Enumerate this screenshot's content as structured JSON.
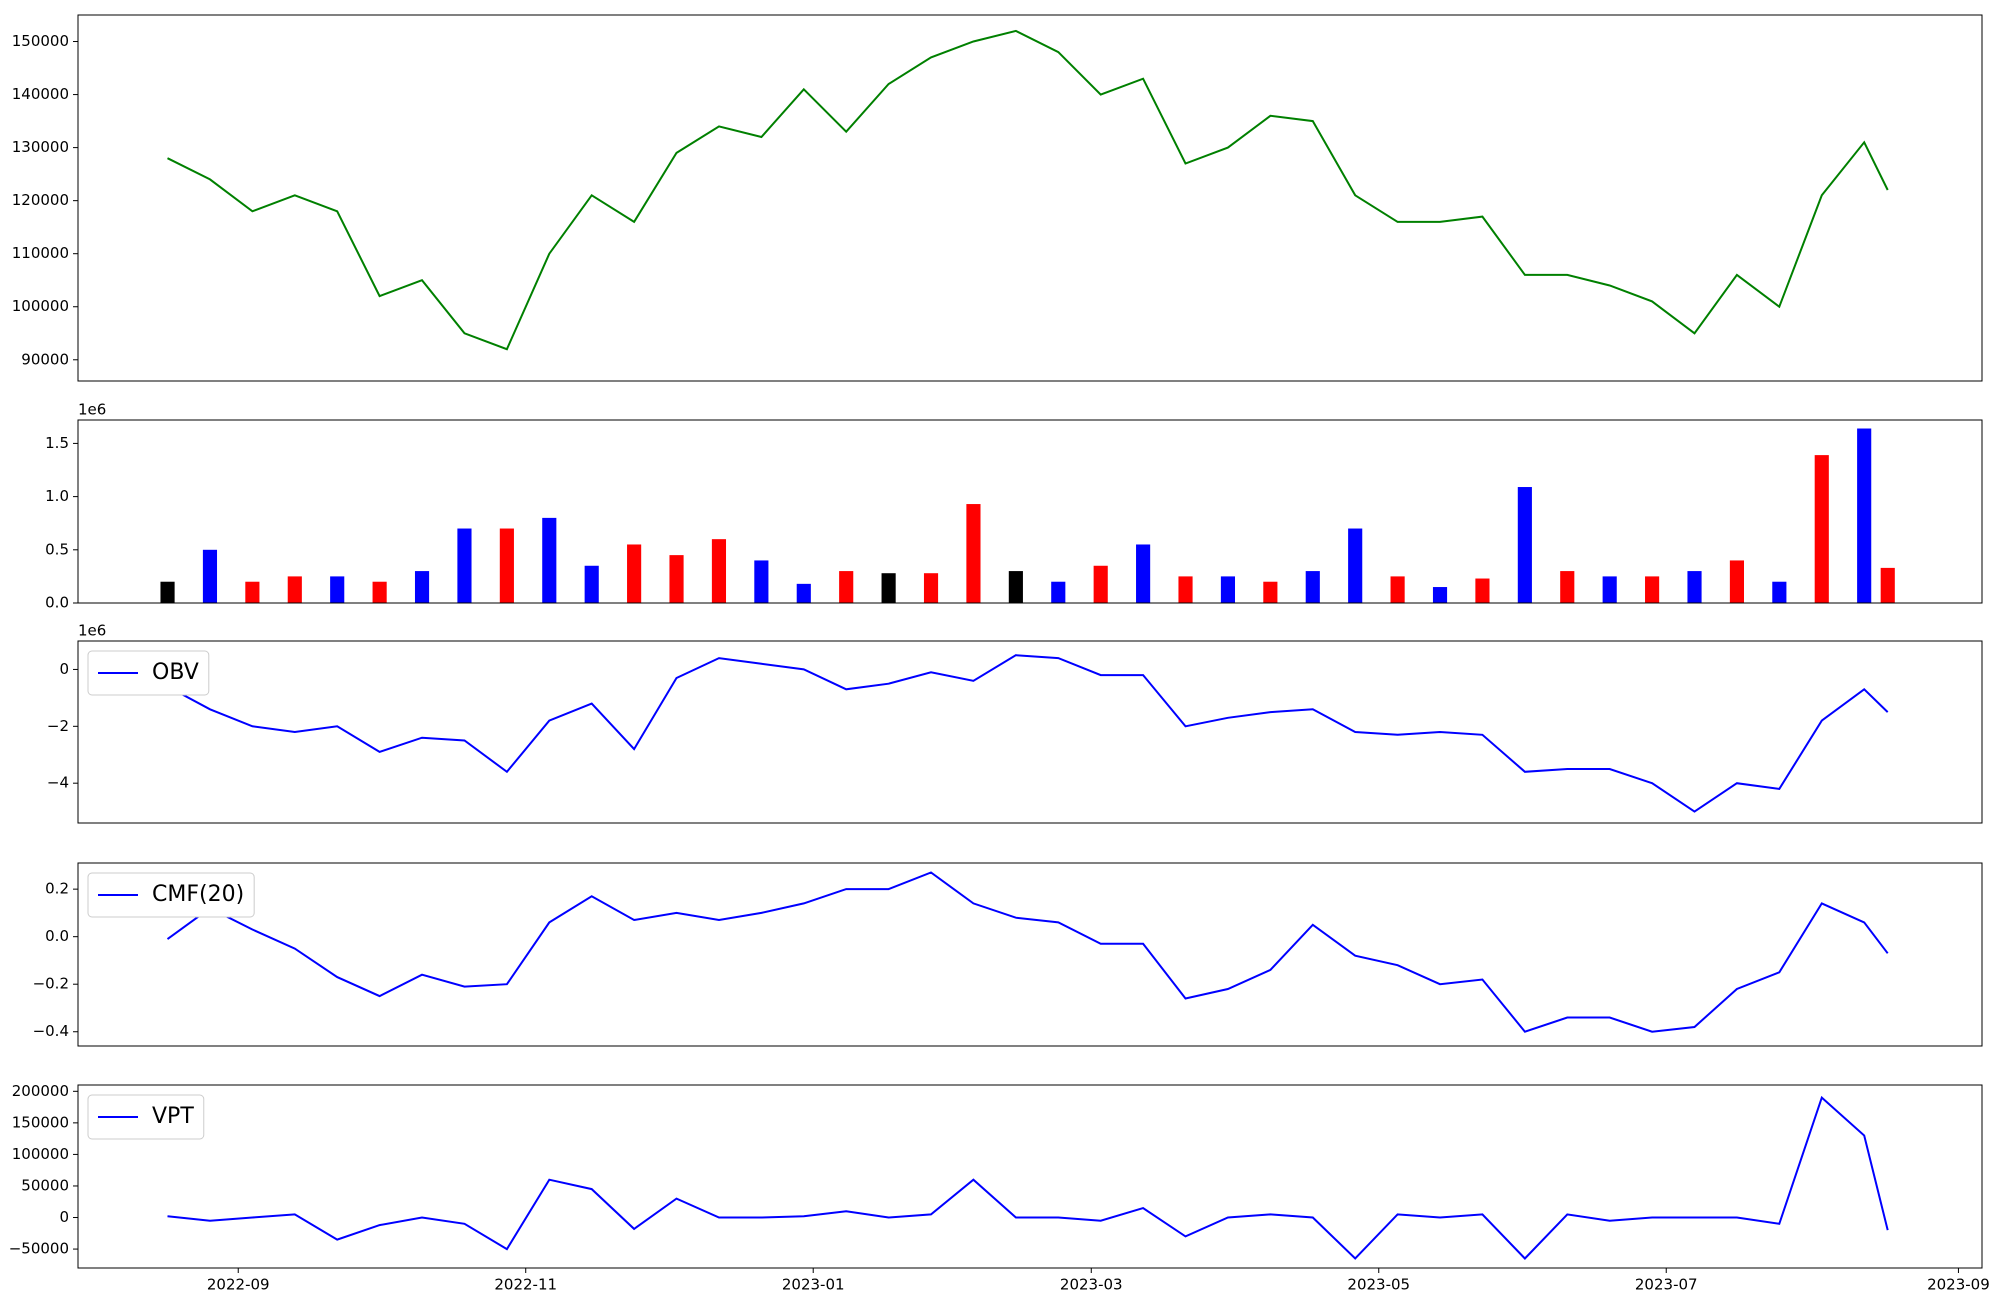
{
  "chart_data": [
    {
      "type": "line",
      "color": "#008000",
      "x": [
        "2022-08-17",
        "2022-08-26",
        "2022-09-04",
        "2022-09-13",
        "2022-09-22",
        "2022-10-01",
        "2022-10-10",
        "2022-10-19",
        "2022-10-28",
        "2022-11-06",
        "2022-11-15",
        "2022-11-24",
        "2022-12-03",
        "2022-12-12",
        "2022-12-21",
        "2022-12-30",
        "2023-01-08",
        "2023-01-17",
        "2023-01-26",
        "2023-02-04",
        "2023-02-13",
        "2023-02-22",
        "2023-03-03",
        "2023-03-12",
        "2023-03-21",
        "2023-03-30",
        "2023-04-08",
        "2023-04-17",
        "2023-04-26",
        "2023-05-05",
        "2023-05-14",
        "2023-05-23",
        "2023-06-01",
        "2023-06-10",
        "2023-06-19",
        "2023-06-28",
        "2023-07-07",
        "2023-07-16",
        "2023-07-25",
        "2023-08-03",
        "2023-08-12",
        "2023-08-17"
      ],
      "values": [
        128000,
        124000,
        118000,
        121000,
        118000,
        102000,
        105000,
        95000,
        92000,
        110000,
        121000,
        116000,
        129000,
        134000,
        132000,
        141000,
        133000,
        142000,
        147000,
        150000,
        152000,
        148000,
        140000,
        143000,
        127000,
        130000,
        136000,
        135000,
        121000,
        116000,
        116000,
        117000,
        106000,
        106000,
        104000,
        101000,
        95000,
        106000,
        100000,
        121000,
        131000,
        122000
      ],
      "xlim": [
        "2022-07-29",
        "2023-09-06"
      ],
      "ylim": [
        86000,
        155000
      ],
      "yticks": [
        90000,
        100000,
        110000,
        120000,
        130000,
        140000,
        150000
      ]
    },
    {
      "type": "bar",
      "offset_label": "1e6",
      "x": [
        "2022-08-17",
        "2022-08-26",
        "2022-09-04",
        "2022-09-13",
        "2022-09-22",
        "2022-10-01",
        "2022-10-10",
        "2022-10-19",
        "2022-10-28",
        "2022-11-06",
        "2022-11-15",
        "2022-11-24",
        "2022-12-03",
        "2022-12-12",
        "2022-12-21",
        "2022-12-30",
        "2023-01-08",
        "2023-01-17",
        "2023-01-26",
        "2023-02-04",
        "2023-02-13",
        "2023-02-22",
        "2023-03-03",
        "2023-03-12",
        "2023-03-21",
        "2023-03-30",
        "2023-04-08",
        "2023-04-17",
        "2023-04-26",
        "2023-05-05",
        "2023-05-14",
        "2023-05-23",
        "2023-06-01",
        "2023-06-10",
        "2023-06-19",
        "2023-06-28",
        "2023-07-07",
        "2023-07-16",
        "2023-07-25",
        "2023-08-03",
        "2023-08-12",
        "2023-08-17"
      ],
      "values": [
        200000,
        500000,
        200000,
        250000,
        250000,
        200000,
        300000,
        700000,
        700000,
        800000,
        350000,
        550000,
        450000,
        600000,
        400000,
        180000,
        300000,
        280000,
        280000,
        930000,
        300000,
        200000,
        350000,
        550000,
        250000,
        250000,
        200000,
        300000,
        700000,
        250000,
        150000,
        230000,
        1090000,
        300000,
        250000,
        250000,
        300000,
        400000,
        200000,
        1390000,
        1640000,
        330000
      ],
      "colors": [
        "#000000",
        "#0000ff",
        "#ff0000",
        "#ff0000",
        "#0000ff",
        "#ff0000",
        "#0000ff",
        "#0000ff",
        "#ff0000",
        "#0000ff",
        "#0000ff",
        "#ff0000",
        "#ff0000",
        "#ff0000",
        "#0000ff",
        "#0000ff",
        "#ff0000",
        "#000000",
        "#ff0000",
        "#ff0000",
        "#000000",
        "#0000ff",
        "#ff0000",
        "#0000ff",
        "#ff0000",
        "#0000ff",
        "#ff0000",
        "#0000ff",
        "#0000ff",
        "#ff0000",
        "#0000ff",
        "#ff0000",
        "#0000ff",
        "#ff0000",
        "#0000ff",
        "#ff0000",
        "#0000ff",
        "#ff0000",
        "#0000ff",
        "#ff0000",
        "#0000ff",
        "#ff0000"
      ],
      "xlim": [
        "2022-07-29",
        "2023-09-06"
      ],
      "ylim": [
        0,
        1720000
      ],
      "yticks": [
        {
          "value": 0,
          "label": "0.0"
        },
        {
          "value": 500000,
          "label": "0.5"
        },
        {
          "value": 1000000,
          "label": "1.0"
        },
        {
          "value": 1500000,
          "label": "1.5"
        }
      ]
    },
    {
      "type": "line",
      "offset_label": "1e6",
      "legend": "upper left",
      "x": [
        "2022-08-17",
        "2022-08-26",
        "2022-09-04",
        "2022-09-13",
        "2022-09-22",
        "2022-10-01",
        "2022-10-10",
        "2022-10-19",
        "2022-10-28",
        "2022-11-06",
        "2022-11-15",
        "2022-11-24",
        "2022-12-03",
        "2022-12-12",
        "2022-12-21",
        "2022-12-30",
        "2023-01-08",
        "2023-01-17",
        "2023-01-26",
        "2023-02-04",
        "2023-02-13",
        "2023-02-22",
        "2023-03-03",
        "2023-03-12",
        "2023-03-21",
        "2023-03-30",
        "2023-04-08",
        "2023-04-17",
        "2023-04-26",
        "2023-05-05",
        "2023-05-14",
        "2023-05-23",
        "2023-06-01",
        "2023-06-10",
        "2023-06-19",
        "2023-06-28",
        "2023-07-07",
        "2023-07-16",
        "2023-07-25",
        "2023-08-03",
        "2023-08-12",
        "2023-08-17"
      ],
      "series": [
        {
          "name": "OBV",
          "color": "#0000ff",
          "values": [
            -600000,
            -1400000,
            -2000000,
            -2200000,
            -2000000,
            -2900000,
            -2400000,
            -2500000,
            -3600000,
            -1800000,
            -1200000,
            -2800000,
            -300000,
            400000,
            200000,
            0,
            -700000,
            -500000,
            -100000,
            -400000,
            500000,
            400000,
            -200000,
            -200000,
            -2000000,
            -1700000,
            -1500000,
            -1400000,
            -2200000,
            -2300000,
            -2200000,
            -2300000,
            -3600000,
            -3500000,
            -3500000,
            -4000000,
            -5000000,
            -4000000,
            -4200000,
            -1800000,
            -700000,
            -1500000
          ]
        }
      ],
      "xlim": [
        "2022-07-29",
        "2023-09-06"
      ],
      "ylim": [
        -5400000,
        1000000
      ],
      "yticks": [
        {
          "value": -4000000,
          "label": "−4"
        },
        {
          "value": -2000000,
          "label": "−2"
        },
        0
      ]
    },
    {
      "type": "line",
      "legend": "upper left",
      "x": [
        "2022-08-17",
        "2022-08-26",
        "2022-09-04",
        "2022-09-13",
        "2022-09-22",
        "2022-10-01",
        "2022-10-10",
        "2022-10-19",
        "2022-10-28",
        "2022-11-06",
        "2022-11-15",
        "2022-11-24",
        "2022-12-03",
        "2022-12-12",
        "2022-12-21",
        "2022-12-30",
        "2023-01-08",
        "2023-01-17",
        "2023-01-26",
        "2023-02-04",
        "2023-02-13",
        "2023-02-22",
        "2023-03-03",
        "2023-03-12",
        "2023-03-21",
        "2023-03-30",
        "2023-04-08",
        "2023-04-17",
        "2023-04-26",
        "2023-05-05",
        "2023-05-14",
        "2023-05-23",
        "2023-06-01",
        "2023-06-10",
        "2023-06-19",
        "2023-06-28",
        "2023-07-07",
        "2023-07-16",
        "2023-07-25",
        "2023-08-03",
        "2023-08-12",
        "2023-08-17"
      ],
      "series": [
        {
          "name": "CMF(20)",
          "color": "#0000ff",
          "values": [
            -0.01,
            0.12,
            0.03,
            -0.05,
            -0.17,
            -0.25,
            -0.16,
            -0.21,
            -0.2,
            0.06,
            0.17,
            0.07,
            0.1,
            0.07,
            0.1,
            0.14,
            0.2,
            0.2,
            0.27,
            0.14,
            0.08,
            0.06,
            -0.03,
            -0.03,
            -0.26,
            -0.22,
            -0.14,
            0.05,
            -0.08,
            -0.12,
            -0.2,
            -0.18,
            -0.4,
            -0.34,
            -0.34,
            -0.4,
            -0.38,
            -0.22,
            -0.15,
            0.14,
            0.06,
            -0.07
          ]
        }
      ],
      "xlim": [
        "2022-07-29",
        "2023-09-06"
      ],
      "ylim": [
        -0.46,
        0.31
      ],
      "yticks": [
        {
          "value": -0.4,
          "label": "−0.4"
        },
        {
          "value": -0.2,
          "label": "−0.2"
        },
        {
          "value": 0,
          "label": "0.0"
        },
        0.2
      ]
    },
    {
      "type": "line",
      "legend": "upper left",
      "x": [
        "2022-08-17",
        "2022-08-26",
        "2022-09-04",
        "2022-09-13",
        "2022-09-22",
        "2022-10-01",
        "2022-10-10",
        "2022-10-19",
        "2022-10-28",
        "2022-11-06",
        "2022-11-15",
        "2022-11-24",
        "2022-12-03",
        "2022-12-12",
        "2022-12-21",
        "2022-12-30",
        "2023-01-08",
        "2023-01-17",
        "2023-01-26",
        "2023-02-04",
        "2023-02-13",
        "2023-02-22",
        "2023-03-03",
        "2023-03-12",
        "2023-03-21",
        "2023-03-30",
        "2023-04-08",
        "2023-04-17",
        "2023-04-26",
        "2023-05-05",
        "2023-05-14",
        "2023-05-23",
        "2023-06-01",
        "2023-06-10",
        "2023-06-19",
        "2023-06-28",
        "2023-07-07",
        "2023-07-16",
        "2023-07-25",
        "2023-08-03",
        "2023-08-12",
        "2023-08-17"
      ],
      "series": [
        {
          "name": "VPT",
          "color": "#0000ff",
          "values": [
            2000,
            -5000,
            0,
            5000,
            -35000,
            -12000,
            0,
            -10000,
            -50000,
            60000,
            45000,
            -18000,
            30000,
            0,
            0,
            2000,
            10000,
            0,
            5000,
            60000,
            0,
            0,
            -5000,
            15000,
            -30000,
            0,
            5000,
            0,
            -65000,
            5000,
            0,
            5000,
            -65000,
            5000,
            -5000,
            0,
            0,
            0,
            -10000,
            190000,
            130000,
            -20000
          ]
        }
      ],
      "xlim": [
        "2022-07-29",
        "2023-09-06"
      ],
      "ylim": [
        -80000,
        210000
      ],
      "yticks": [
        {
          "value": -50000,
          "label": "−50000"
        },
        0,
        50000,
        100000,
        150000,
        200000
      ],
      "xticks": [
        "2022-09",
        "2022-11",
        "2023-01",
        "2023-03",
        "2023-05",
        "2023-07",
        "2023-09"
      ]
    }
  ]
}
